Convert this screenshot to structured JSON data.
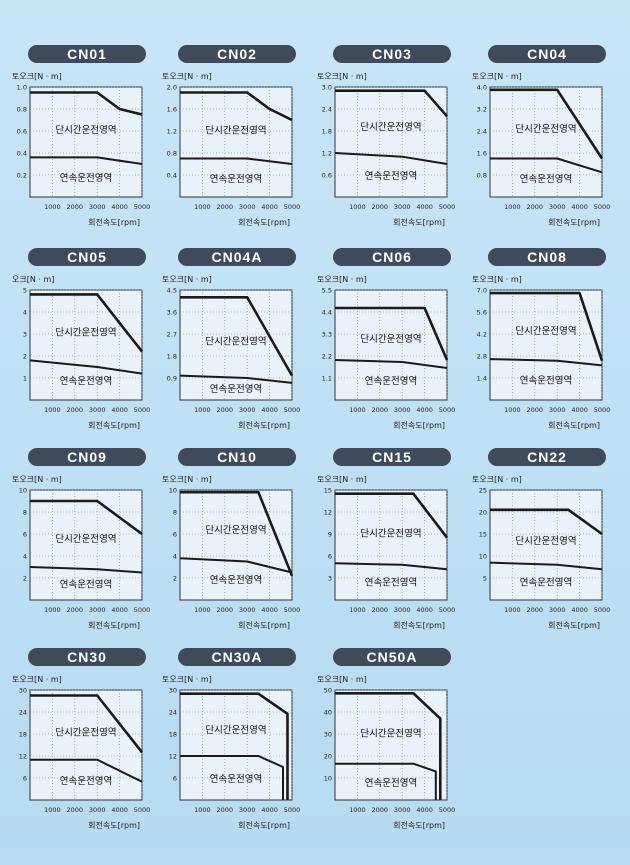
{
  "page": {
    "background": "#b9dcf3"
  },
  "chart_data": [
    {
      "type": "line",
      "title": "CN01",
      "ylabel": "토오크[N · m]",
      "xlabel": "회전속도[rpm]",
      "x_ticks": [
        "1000",
        "2000",
        "3000",
        "4000",
        "5000"
      ],
      "y_ticks": [
        "0.2",
        "0.4",
        "0.6",
        "0.8",
        "1.0"
      ],
      "xlim": [
        0,
        5000
      ],
      "ylim": [
        0,
        1.0
      ],
      "short_region_label": "단시간운전영역",
      "continuous_region_label": "연속운전영역",
      "series": [
        {
          "x": [
            0,
            3000,
            4000,
            5000
          ],
          "y": [
            0.95,
            0.95,
            0.8,
            0.75
          ]
        },
        {
          "x": [
            0,
            3000,
            5000
          ],
          "y": [
            0.36,
            0.36,
            0.3
          ]
        }
      ]
    },
    {
      "type": "line",
      "title": "CN02",
      "ylabel": "토오크[N · m]",
      "xlabel": "회전속도[rpm]",
      "x_ticks": [
        "1000",
        "2000",
        "3000",
        "4000",
        "5000"
      ],
      "y_ticks": [
        "0.4",
        "0.8",
        "1.2",
        "1.6",
        "2.0"
      ],
      "xlim": [
        0,
        5000
      ],
      "ylim": [
        0,
        2.0
      ],
      "short_region_label": "단시간운전영역",
      "continuous_region_label": "연속운전영역",
      "series": [
        {
          "x": [
            0,
            3000,
            4000,
            5000
          ],
          "y": [
            1.9,
            1.9,
            1.6,
            1.4
          ]
        },
        {
          "x": [
            0,
            3000,
            5000
          ],
          "y": [
            0.7,
            0.7,
            0.6
          ]
        }
      ]
    },
    {
      "type": "line",
      "title": "CN03",
      "ylabel": "토오크[N · m]",
      "xlabel": "회전속도[rpm]",
      "x_ticks": [
        "1000",
        "2000",
        "3000",
        "4000",
        "5000"
      ],
      "y_ticks": [
        "0.6",
        "1.2",
        "1.8",
        "2.4",
        "3.0"
      ],
      "xlim": [
        0,
        5000
      ],
      "ylim": [
        0,
        3.0
      ],
      "short_region_label": "단시간운전영역",
      "continuous_region_label": "연속운전영역",
      "series": [
        {
          "x": [
            0,
            4000,
            5000
          ],
          "y": [
            2.9,
            2.9,
            2.2
          ]
        },
        {
          "x": [
            0,
            3000,
            5000
          ],
          "y": [
            1.2,
            1.1,
            0.9
          ]
        }
      ]
    },
    {
      "type": "line",
      "title": "CN04",
      "ylabel": "토오크[N · m]",
      "xlabel": "회전속도[rpm]",
      "x_ticks": [
        "1000",
        "2000",
        "3000",
        "4000",
        "5000"
      ],
      "y_ticks": [
        "0.8",
        "1.6",
        "2.4",
        "3.2",
        "4.0"
      ],
      "xlim": [
        0,
        5000
      ],
      "ylim": [
        0,
        4.0
      ],
      "short_region_label": "단시간운전영역",
      "continuous_region_label": "연속운전영역",
      "series": [
        {
          "x": [
            0,
            3000,
            5000
          ],
          "y": [
            3.9,
            3.9,
            1.4
          ]
        },
        {
          "x": [
            0,
            3000,
            5000
          ],
          "y": [
            1.4,
            1.4,
            0.9
          ]
        }
      ]
    },
    {
      "type": "line",
      "title": "CN05",
      "ylabel": "오크[N · m]",
      "xlabel": "회전속도[rpm]",
      "x_ticks": [
        "1000",
        "2000",
        "3000",
        "4000",
        "5000"
      ],
      "y_ticks": [
        "1",
        "2",
        "3",
        "4",
        "5"
      ],
      "xlim": [
        0,
        5000
      ],
      "ylim": [
        0,
        5
      ],
      "short_region_label": "단시간운전영역",
      "continuous_region_label": "연속운전영역",
      "series": [
        {
          "x": [
            0,
            3000,
            5000
          ],
          "y": [
            4.8,
            4.8,
            2.2
          ]
        },
        {
          "x": [
            0,
            3000,
            5000
          ],
          "y": [
            1.8,
            1.5,
            1.2
          ]
        }
      ]
    },
    {
      "type": "line",
      "title": "CN04A",
      "ylabel": "토오크[N · m]",
      "xlabel": "회전속도[rpm]",
      "x_ticks": [
        "1000",
        "2000",
        "3000",
        "4000",
        "5000"
      ],
      "y_ticks": [
        "0.9",
        "1.8",
        "2.7",
        "3.6",
        "4.5"
      ],
      "xlim": [
        0,
        5000
      ],
      "ylim": [
        0,
        4.5
      ],
      "short_region_label": "단시간운전영역",
      "continuous_region_label": "연속운전영역",
      "series": [
        {
          "x": [
            0,
            3000,
            5000
          ],
          "y": [
            4.2,
            4.2,
            1.0
          ]
        },
        {
          "x": [
            0,
            3000,
            5000
          ],
          "y": [
            1.0,
            0.9,
            0.7
          ]
        }
      ]
    },
    {
      "type": "line",
      "title": "CN06",
      "ylabel": "토오크[N · m]",
      "xlabel": "회전속도[rpm]",
      "x_ticks": [
        "1000",
        "2000",
        "3000",
        "4000",
        "5000"
      ],
      "y_ticks": [
        "1.1",
        "2.2",
        "3.3",
        "4.4",
        "5.5"
      ],
      "xlim": [
        0,
        5000
      ],
      "ylim": [
        0,
        5.5
      ],
      "short_region_label": "단시간운전영역",
      "continuous_region_label": "연속운전영역",
      "series": [
        {
          "x": [
            0,
            4000,
            5000
          ],
          "y": [
            4.6,
            4.6,
            2.0
          ]
        },
        {
          "x": [
            0,
            3000,
            5000
          ],
          "y": [
            2.0,
            1.9,
            1.6
          ]
        }
      ]
    },
    {
      "type": "line",
      "title": "CN08",
      "ylabel": "토오크[N · m]",
      "xlabel": "회전속도[rpm]",
      "x_ticks": [
        "1000",
        "2000",
        "3000",
        "4000",
        "5000"
      ],
      "y_ticks": [
        "1.4",
        "2.8",
        "4.2",
        "5.6",
        "7.0"
      ],
      "xlim": [
        0,
        5000
      ],
      "ylim": [
        0,
        7.0
      ],
      "short_region_label": "단시간운전영역",
      "continuous_region_label": "연속운전영역",
      "series": [
        {
          "x": [
            0,
            4000,
            5000
          ],
          "y": [
            6.8,
            6.8,
            2.5
          ]
        },
        {
          "x": [
            0,
            3000,
            5000
          ],
          "y": [
            2.6,
            2.5,
            2.2
          ]
        }
      ]
    },
    {
      "type": "line",
      "title": "CN09",
      "ylabel": "토오크[N · m]",
      "xlabel": "회전속도[rpm]",
      "x_ticks": [
        "1000",
        "2000",
        "3000",
        "4000",
        "5000"
      ],
      "y_ticks": [
        "2",
        "4",
        "6",
        "8",
        "10"
      ],
      "xlim": [
        0,
        5000
      ],
      "ylim": [
        0,
        10
      ],
      "short_region_label": "단시간운전영역",
      "continuous_region_label": "연속운전영역",
      "series": [
        {
          "x": [
            0,
            3000,
            5000
          ],
          "y": [
            9.0,
            9.0,
            6.0
          ]
        },
        {
          "x": [
            0,
            3000,
            5000
          ],
          "y": [
            3.0,
            2.8,
            2.5
          ]
        }
      ]
    },
    {
      "type": "line",
      "title": "CN10",
      "ylabel": "토오크[N · m]",
      "xlabel": "회전속도[rpm]",
      "x_ticks": [
        "1000",
        "2000",
        "3000",
        "4000",
        "5000"
      ],
      "y_ticks": [
        "2",
        "4",
        "6",
        "8",
        "10"
      ],
      "xlim": [
        0,
        5000
      ],
      "ylim": [
        0,
        10
      ],
      "short_region_label": "단시간운전영역",
      "continuous_region_label": "연속운전영역",
      "series": [
        {
          "x": [
            0,
            3500,
            5000
          ],
          "y": [
            9.8,
            9.8,
            2.2
          ]
        },
        {
          "x": [
            0,
            3000,
            5000
          ],
          "y": [
            3.8,
            3.5,
            2.5
          ]
        }
      ]
    },
    {
      "type": "line",
      "title": "CN15",
      "ylabel": "토오크[N · m]",
      "xlabel": "회전속도[rpm]",
      "x_ticks": [
        "1000",
        "2000",
        "3000",
        "4000",
        "5000"
      ],
      "y_ticks": [
        "3",
        "6",
        "9",
        "12",
        "15"
      ],
      "xlim": [
        0,
        5000
      ],
      "ylim": [
        0,
        15
      ],
      "short_region_label": "단시간운전영역",
      "continuous_region_label": "연속운전영역",
      "series": [
        {
          "x": [
            0,
            3500,
            5000
          ],
          "y": [
            14.5,
            14.5,
            8.5
          ]
        },
        {
          "x": [
            0,
            3000,
            5000
          ],
          "y": [
            5.0,
            4.8,
            4.2
          ]
        }
      ]
    },
    {
      "type": "line",
      "title": "CN22",
      "ylabel": "토오크[N · m]",
      "xlabel": "회전속도[rpm]",
      "x_ticks": [
        "1000",
        "2000",
        "3000",
        "4000",
        "5000"
      ],
      "y_ticks": [
        "5",
        "10",
        "15",
        "20",
        "25"
      ],
      "xlim": [
        0,
        5000
      ],
      "ylim": [
        0,
        25
      ],
      "short_region_label": "단시간운전영역",
      "continuous_region_label": "연속운전영역",
      "series": [
        {
          "x": [
            0,
            3500,
            5000
          ],
          "y": [
            20.5,
            20.5,
            15.0
          ]
        },
        {
          "x": [
            0,
            3000,
            5000
          ],
          "y": [
            8.5,
            8.0,
            7.0
          ]
        }
      ]
    },
    {
      "type": "line",
      "title": "CN30",
      "ylabel": "토오크[N · m]",
      "xlabel": "회전속도[rpm]",
      "x_ticks": [
        "1000",
        "2000",
        "3000",
        "4000",
        "5000"
      ],
      "y_ticks": [
        "6",
        "12",
        "18",
        "24",
        "30"
      ],
      "xlim": [
        0,
        5000
      ],
      "ylim": [
        0,
        30
      ],
      "short_region_label": "단시간운전영역",
      "continuous_region_label": "연속운전영역",
      "series": [
        {
          "x": [
            0,
            3000,
            5000
          ],
          "y": [
            28.5,
            28.5,
            13.0
          ]
        },
        {
          "x": [
            0,
            3000,
            5000
          ],
          "y": [
            11.0,
            11.0,
            5.0
          ]
        }
      ]
    },
    {
      "type": "line",
      "title": "CN30A",
      "ylabel": "토오크[N · m]",
      "xlabel": "회전속도[rpm]",
      "x_ticks": [
        "1000",
        "2000",
        "3000",
        "4000",
        "5000"
      ],
      "y_ticks": [
        "6",
        "12",
        "18",
        "24",
        "30"
      ],
      "xlim": [
        0,
        5000
      ],
      "ylim": [
        0,
        30
      ],
      "short_region_label": "단시간운전영역",
      "continuous_region_label": "연속운전영역",
      "series": [
        {
          "x": [
            0,
            3500,
            4800,
            4800
          ],
          "y": [
            29.0,
            29.0,
            23.5,
            0
          ]
        },
        {
          "x": [
            0,
            3500,
            4600,
            4600
          ],
          "y": [
            12.0,
            12.0,
            9.0,
            0
          ]
        }
      ]
    },
    {
      "type": "line",
      "title": "CN50A",
      "ylabel": "토오크[N · m]",
      "xlabel": "회전속도[rpm]",
      "x_ticks": [
        "1000",
        "2000",
        "3000",
        "4000",
        "5000"
      ],
      "y_ticks": [
        "10",
        "20",
        "30",
        "40",
        "50"
      ],
      "xlim": [
        0,
        5000
      ],
      "ylim": [
        0,
        50
      ],
      "short_region_label": "단시간운전영역",
      "continuous_region_label": "연속운전영역",
      "series": [
        {
          "x": [
            0,
            3500,
            4700,
            4700
          ],
          "y": [
            48.5,
            48.5,
            37.0,
            0
          ]
        },
        {
          "x": [
            0,
            3500,
            4500,
            4500
          ],
          "y": [
            16.5,
            16.5,
            13.0,
            0
          ]
        }
      ]
    }
  ]
}
